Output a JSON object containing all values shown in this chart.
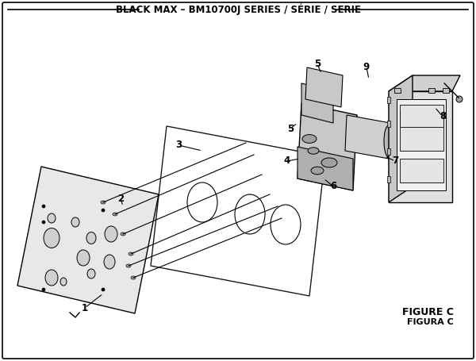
{
  "title": "BLACK MAX – BM10700J SERIES / SÉRIE / SERIE",
  "figure_label": "FIGURE C",
  "figura_label": "FIGURA C",
  "bg_color": "#ffffff",
  "line_color": "#000000",
  "callout_data": [
    [
      "1",
      107,
      67,
      130,
      85
    ],
    [
      "2",
      152,
      205,
      155,
      195
    ],
    [
      "3",
      225,
      272,
      255,
      265
    ],
    [
      "4",
      362,
      252,
      378,
      255
    ],
    [
      "5",
      400,
      375,
      405,
      362
    ],
    [
      "5",
      366,
      293,
      375,
      300
    ],
    [
      "6",
      420,
      220,
      408,
      230
    ],
    [
      "7",
      498,
      252,
      485,
      258
    ],
    [
      "8",
      558,
      308,
      548,
      320
    ],
    [
      "9",
      462,
      370,
      465,
      355
    ]
  ]
}
